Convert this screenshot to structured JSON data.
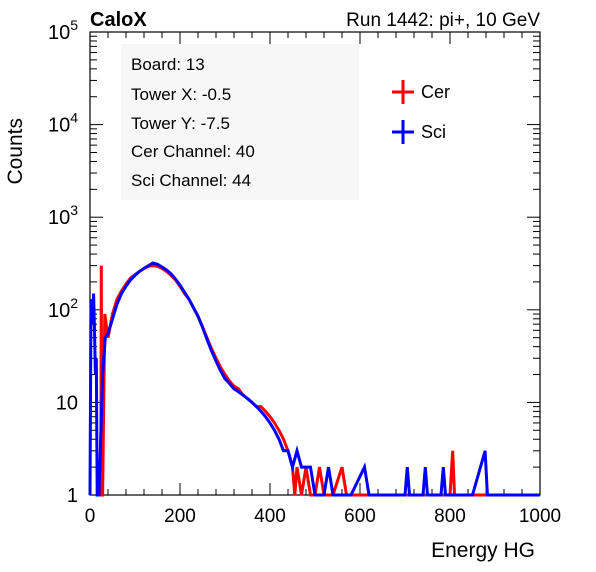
{
  "header": {
    "left": "CaloX",
    "right": "Run 1442: pi+, 10 GeV"
  },
  "info": {
    "board": "Board: 13",
    "tower_x": "Tower X: -0.5",
    "tower_y": "Tower Y: -7.5",
    "cer_channel": "Cer Channel: 40",
    "sci_channel": "Sci Channel: 44"
  },
  "colors": {
    "cer": "#ff0000",
    "sci": "#0000ff"
  },
  "chart_data": {
    "type": "line",
    "title": "",
    "xlabel": "Energy HG",
    "ylabel": "Counts",
    "xlim": [
      0,
      1000
    ],
    "ylim": [
      1,
      100000
    ],
    "yscale": "log",
    "grid": false,
    "legend_position": "top-right",
    "x_ticks": [
      "0",
      "200",
      "400",
      "600",
      "800",
      "1000"
    ],
    "y_ticks": [
      {
        "base": "1",
        "exp": ""
      },
      {
        "base": "10",
        "exp": ""
      },
      {
        "base": "10",
        "exp": "2"
      },
      {
        "base": "10",
        "exp": "3"
      },
      {
        "base": "10",
        "exp": "4"
      },
      {
        "base": "10",
        "exp": "5"
      }
    ],
    "series": [
      {
        "name": "Cer",
        "color": "#ff0000",
        "points": [
          [
            24,
            1
          ],
          [
            25,
            300
          ],
          [
            26,
            1
          ],
          [
            28,
            1
          ],
          [
            33,
            90
          ],
          [
            40,
            50
          ],
          [
            50,
            90
          ],
          [
            60,
            130
          ],
          [
            70,
            160
          ],
          [
            80,
            190
          ],
          [
            90,
            220
          ],
          [
            100,
            240
          ],
          [
            110,
            260
          ],
          [
            120,
            280
          ],
          [
            130,
            295
          ],
          [
            140,
            300
          ],
          [
            150,
            295
          ],
          [
            160,
            280
          ],
          [
            170,
            260
          ],
          [
            180,
            235
          ],
          [
            190,
            210
          ],
          [
            200,
            180
          ],
          [
            210,
            150
          ],
          [
            220,
            130
          ],
          [
            230,
            105
          ],
          [
            240,
            85
          ],
          [
            250,
            65
          ],
          [
            260,
            50
          ],
          [
            270,
            38
          ],
          [
            280,
            30
          ],
          [
            290,
            24
          ],
          [
            300,
            20
          ],
          [
            310,
            17
          ],
          [
            320,
            15
          ],
          [
            330,
            14
          ],
          [
            340,
            12
          ],
          [
            350,
            11
          ],
          [
            360,
            10
          ],
          [
            370,
            9
          ],
          [
            380,
            9
          ],
          [
            390,
            8
          ],
          [
            400,
            7
          ],
          [
            410,
            6
          ],
          [
            420,
            5
          ],
          [
            430,
            4
          ],
          [
            440,
            3
          ],
          [
            450,
            2
          ],
          [
            455,
            1
          ],
          [
            460,
            2
          ],
          [
            470,
            1
          ],
          [
            480,
            2
          ],
          [
            490,
            1
          ],
          [
            500,
            1
          ],
          [
            510,
            2
          ],
          [
            520,
            1
          ],
          [
            540,
            1
          ],
          [
            560,
            2
          ],
          [
            570,
            1
          ],
          [
            600,
            1
          ],
          [
            800,
            1
          ],
          [
            806,
            3
          ],
          [
            810,
            1
          ],
          [
            1000,
            1
          ]
        ]
      },
      {
        "name": "Sci",
        "color": "#0000ff",
        "points": [
          [
            0,
            1
          ],
          [
            2,
            80
          ],
          [
            4,
            130
          ],
          [
            6,
            70
          ],
          [
            8,
            150
          ],
          [
            10,
            60
          ],
          [
            12,
            20
          ],
          [
            14,
            30
          ],
          [
            16,
            1
          ],
          [
            20,
            1
          ],
          [
            28,
            20
          ],
          [
            34,
            50
          ],
          [
            40,
            55
          ],
          [
            50,
            80
          ],
          [
            60,
            115
          ],
          [
            70,
            150
          ],
          [
            80,
            180
          ],
          [
            90,
            210
          ],
          [
            100,
            235
          ],
          [
            110,
            260
          ],
          [
            120,
            280
          ],
          [
            130,
            300
          ],
          [
            140,
            320
          ],
          [
            150,
            310
          ],
          [
            160,
            290
          ],
          [
            170,
            270
          ],
          [
            180,
            245
          ],
          [
            190,
            215
          ],
          [
            200,
            185
          ],
          [
            210,
            155
          ],
          [
            220,
            130
          ],
          [
            230,
            105
          ],
          [
            240,
            85
          ],
          [
            250,
            65
          ],
          [
            260,
            48
          ],
          [
            270,
            36
          ],
          [
            280,
            28
          ],
          [
            290,
            22
          ],
          [
            300,
            18
          ],
          [
            310,
            16
          ],
          [
            320,
            14
          ],
          [
            330,
            13
          ],
          [
            340,
            12
          ],
          [
            350,
            11
          ],
          [
            360,
            10
          ],
          [
            370,
            9
          ],
          [
            380,
            8
          ],
          [
            390,
            7
          ],
          [
            400,
            6
          ],
          [
            410,
            5
          ],
          [
            420,
            4
          ],
          [
            430,
            3
          ],
          [
            440,
            3
          ],
          [
            450,
            2
          ],
          [
            460,
            3
          ],
          [
            470,
            2
          ],
          [
            480,
            2
          ],
          [
            490,
            2
          ],
          [
            500,
            1
          ],
          [
            520,
            1
          ],
          [
            530,
            2
          ],
          [
            540,
            1
          ],
          [
            560,
            1
          ],
          [
            580,
            1
          ],
          [
            610,
            2
          ],
          [
            620,
            1
          ],
          [
            640,
            1
          ],
          [
            700,
            1
          ],
          [
            705,
            2
          ],
          [
            710,
            1
          ],
          [
            740,
            1
          ],
          [
            745,
            2
          ],
          [
            750,
            1
          ],
          [
            780,
            1
          ],
          [
            785,
            2
          ],
          [
            790,
            1
          ],
          [
            850,
            1
          ],
          [
            878,
            3
          ],
          [
            883,
            1
          ],
          [
            1000,
            1
          ]
        ]
      }
    ]
  }
}
